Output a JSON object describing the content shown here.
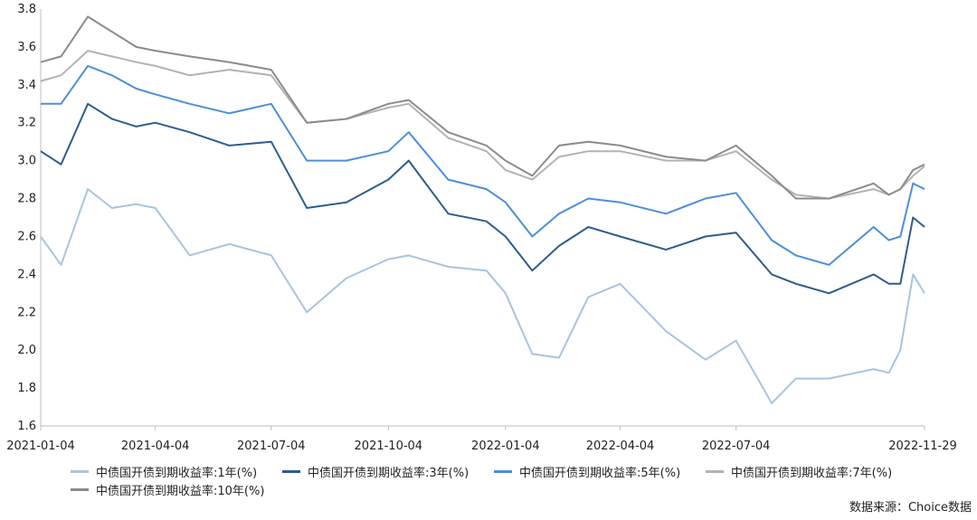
{
  "chart_data": {
    "type": "line",
    "title": "",
    "xlabel": "",
    "ylabel": "",
    "ylim": [
      1.6,
      3.8
    ],
    "yticks": [
      1.6,
      1.8,
      2.0,
      2.2,
      2.4,
      2.6,
      2.8,
      3.0,
      3.2,
      3.4,
      3.6,
      3.8
    ],
    "ytick_labels": [
      "1.6",
      "1.8",
      "2.0",
      "2.2",
      "2.4",
      "2.6",
      "2.8",
      "3.0",
      "3.2",
      "3.4",
      "3.6",
      "3.8"
    ],
    "x_tick_labels": [
      "2021-01-04",
      "2021-04-04",
      "2021-07-04",
      "2021-10-04",
      "2022-01-04",
      "2022-04-04",
      "2022-07-04",
      "2022-11-29"
    ],
    "x": [
      "2021-01-04",
      "2021-01-20",
      "2021-02-10",
      "2021-03-01",
      "2021-03-20",
      "2021-04-04",
      "2021-05-01",
      "2021-06-01",
      "2021-07-04",
      "2021-08-01",
      "2021-09-01",
      "2021-10-04",
      "2021-10-20",
      "2021-11-20",
      "2021-12-20",
      "2022-01-04",
      "2022-01-25",
      "2022-02-15",
      "2022-03-10",
      "2022-04-04",
      "2022-05-10",
      "2022-06-10",
      "2022-07-04",
      "2022-08-01",
      "2022-08-20",
      "2022-09-15",
      "2022-10-20",
      "2022-11-01",
      "2022-11-10",
      "2022-11-20",
      "2022-11-29"
    ],
    "grid": false,
    "legend_position": "bottom",
    "series": [
      {
        "name": "中债国开债到期收益率:1年(%)",
        "color": "#a9c4de",
        "values": [
          2.6,
          2.45,
          2.85,
          2.75,
          2.77,
          2.75,
          2.5,
          2.56,
          2.5,
          2.2,
          2.38,
          2.48,
          2.5,
          2.44,
          2.42,
          2.3,
          1.98,
          1.96,
          2.28,
          2.35,
          2.1,
          1.95,
          2.05,
          1.72,
          1.85,
          1.85,
          1.9,
          1.88,
          2.0,
          2.4,
          2.3
        ]
      },
      {
        "name": "中债国开债到期收益率:3年(%)",
        "color": "#2d5d8e",
        "values": [
          3.05,
          2.98,
          3.3,
          3.22,
          3.18,
          3.2,
          3.15,
          3.08,
          3.1,
          2.75,
          2.78,
          2.9,
          3.0,
          2.72,
          2.68,
          2.6,
          2.42,
          2.55,
          2.65,
          2.6,
          2.53,
          2.6,
          2.62,
          2.4,
          2.35,
          2.3,
          2.4,
          2.35,
          2.35,
          2.7,
          2.65
        ]
      },
      {
        "name": "中债国开债到期收益率:5年(%)",
        "color": "#4d8fd6",
        "values": [
          3.3,
          3.3,
          3.5,
          3.45,
          3.38,
          3.35,
          3.3,
          3.25,
          3.3,
          3.0,
          3.0,
          3.05,
          3.15,
          2.9,
          2.85,
          2.78,
          2.6,
          2.72,
          2.8,
          2.78,
          2.72,
          2.8,
          2.83,
          2.58,
          2.5,
          2.45,
          2.65,
          2.58,
          2.6,
          2.88,
          2.85
        ]
      },
      {
        "name": "中债国开债到期收益率:7年(%)",
        "color": "#b3b3b3",
        "values": [
          3.42,
          3.45,
          3.58,
          3.55,
          3.52,
          3.5,
          3.45,
          3.48,
          3.45,
          3.2,
          3.22,
          3.28,
          3.3,
          3.12,
          3.05,
          2.95,
          2.9,
          3.02,
          3.05,
          3.05,
          3.0,
          3.0,
          3.05,
          2.9,
          2.82,
          2.8,
          2.85,
          2.82,
          2.85,
          2.92,
          2.97
        ]
      },
      {
        "name": "中债国开债到期收益率:10年(%)",
        "color": "#8c8c8c",
        "values": [
          3.52,
          3.55,
          3.76,
          3.68,
          3.6,
          3.58,
          3.55,
          3.52,
          3.48,
          3.2,
          3.22,
          3.3,
          3.32,
          3.15,
          3.08,
          3.0,
          2.92,
          3.08,
          3.1,
          3.08,
          3.02,
          3.0,
          3.08,
          2.92,
          2.8,
          2.8,
          2.88,
          2.82,
          2.85,
          2.95,
          2.98
        ]
      }
    ]
  },
  "source_note": "数据来源：Choice数据"
}
